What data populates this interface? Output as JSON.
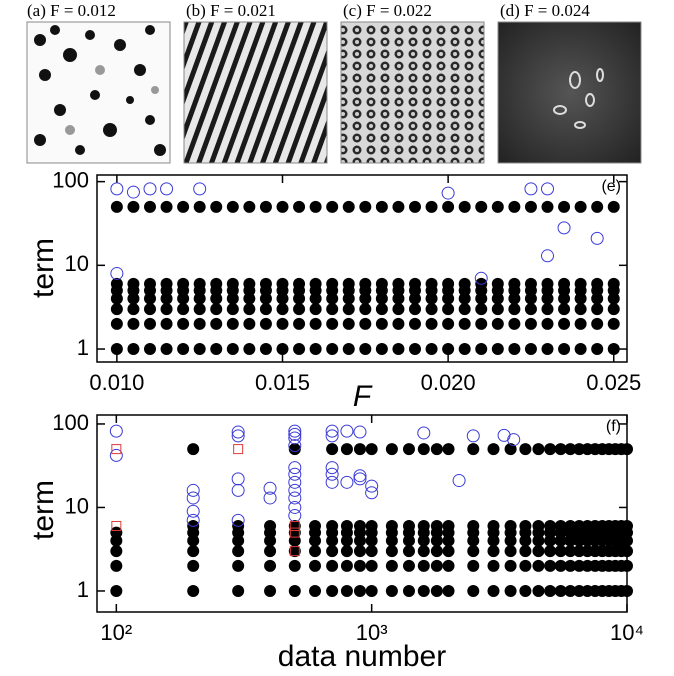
{
  "panels": [
    {
      "label": "(a) F = 0.012"
    },
    {
      "label": "(b) F = 0.021"
    },
    {
      "label": "(c) F = 0.022"
    },
    {
      "label": "(d) F = 0.024"
    }
  ],
  "chart_data": [
    {
      "type": "scatter",
      "panel_label": "(e)",
      "x_label": "F",
      "y_label": "term",
      "log_y": true,
      "xlim": [
        0.0094,
        0.0254
      ],
      "ylim": [
        0.7,
        120
      ],
      "xticks": [
        {
          "value": 0.01,
          "label": "0.010"
        },
        0.015,
        {
          "value": 0.02,
          "label": "0.020"
        },
        0.025
      ],
      "yticks": [
        1,
        10,
        100
      ],
      "x": [
        0.01,
        0.0105,
        0.011,
        0.0115,
        0.012,
        0.0125,
        0.013,
        0.0135,
        0.014,
        0.0145,
        0.015,
        0.0155,
        0.016,
        0.0165,
        0.017,
        0.0175,
        0.018,
        0.0185,
        0.019,
        0.0195,
        0.02,
        0.0205,
        0.021,
        0.0215,
        0.022,
        0.0225,
        0.023,
        0.0235,
        0.024,
        0.0245,
        0.025
      ],
      "series": [
        {
          "color": "#000000",
          "marker": "filled-circle",
          "values": [
            1,
            1,
            1,
            1,
            1,
            1,
            1,
            1,
            1,
            1,
            1,
            1,
            1,
            1,
            1,
            1,
            1,
            1,
            1,
            1,
            1,
            1,
            1,
            1,
            1,
            1,
            1,
            1,
            1,
            1,
            1
          ]
        },
        {
          "color": "#000000",
          "marker": "filled-circle",
          "values": [
            2,
            2,
            2,
            2,
            2,
            2,
            2,
            2,
            2,
            2,
            2,
            2,
            2,
            2,
            2,
            2,
            2,
            2,
            2,
            2,
            2,
            2,
            2,
            2,
            2,
            2,
            2,
            2,
            2,
            2,
            2
          ]
        },
        {
          "color": "#000000",
          "marker": "filled-circle",
          "values": [
            3,
            3,
            3,
            3,
            3,
            3,
            3,
            3,
            3,
            3,
            3,
            3,
            3,
            3,
            3,
            3,
            3,
            3,
            3,
            3,
            3,
            3,
            3,
            3,
            3,
            3,
            3,
            3,
            3,
            3,
            3
          ]
        },
        {
          "color": "#000000",
          "marker": "filled-circle",
          "values": [
            4,
            4,
            4,
            4,
            4,
            4,
            4,
            4,
            4,
            4,
            4,
            4,
            4,
            4,
            4,
            4,
            4,
            4,
            4,
            4,
            4,
            4,
            4,
            4,
            4,
            4,
            4,
            4,
            4,
            4,
            4
          ]
        },
        {
          "color": "#000000",
          "marker": "filled-circle",
          "values": [
            5,
            5,
            5,
            5,
            5,
            5,
            5,
            5,
            5,
            5,
            5,
            5,
            5,
            5,
            5,
            5,
            5,
            5,
            5,
            5,
            5,
            5,
            5,
            5,
            5,
            5,
            5,
            5,
            5,
            5,
            5
          ]
        },
        {
          "color": "#000000",
          "marker": "filled-circle",
          "values": [
            6,
            6,
            6,
            6,
            6,
            6,
            6,
            6,
            6,
            6,
            6,
            6,
            6,
            6,
            6,
            6,
            6,
            6,
            6,
            6,
            6,
            6,
            6,
            6,
            6,
            6,
            6,
            6,
            6,
            6,
            6
          ]
        },
        {
          "color": "#000000",
          "marker": "filled-circle",
          "values": [
            50,
            50,
            50,
            50,
            50,
            50,
            50,
            50,
            50,
            50,
            50,
            50,
            50,
            50,
            50,
            50,
            50,
            50,
            50,
            50,
            50,
            50,
            50,
            50,
            50,
            50,
            50,
            50,
            50,
            50,
            50
          ]
        },
        {
          "color": "#3a3ad6",
          "marker": "open-circle",
          "x": [
            0.01,
            0.01,
            0.0105,
            0.011,
            0.0115,
            0.0125,
            0.02,
            0.021,
            0.0225,
            0.023,
            0.023,
            0.0235,
            0.0245
          ],
          "values": [
            82,
            8,
            75,
            82,
            82,
            82,
            73,
            7,
            82,
            82,
            13,
            28,
            21
          ]
        }
      ]
    },
    {
      "type": "scatter",
      "panel_label": "(f)",
      "x_label": "data number",
      "y_label": "term",
      "log_x": true,
      "log_y": true,
      "xlim": [
        84,
        10000
      ],
      "ylim": [
        0.56,
        128
      ],
      "xticks": [
        {
          "value": 100,
          "label": "10²"
        },
        {
          "value": 1000,
          "label": "10³"
        },
        {
          "value": 10000,
          "label": "10⁴"
        }
      ],
      "yticks": [
        1,
        10,
        100
      ],
      "x": [
        100,
        200,
        300,
        400,
        500,
        600,
        700,
        800,
        900,
        1000,
        1200,
        1400,
        1600,
        1800,
        2000,
        2500,
        3000,
        3500,
        4000,
        4500,
        5000,
        5500,
        6000,
        6500,
        7000,
        7500,
        8000,
        8500,
        9000,
        9500,
        10000
      ],
      "series": [
        {
          "color": "#000000",
          "marker": "filled-circle",
          "values": [
            1,
            1,
            1,
            1,
            1,
            1,
            1,
            1,
            1,
            1,
            1,
            1,
            1,
            1,
            1,
            1,
            1,
            1,
            1,
            1,
            1,
            1,
            1,
            1,
            1,
            1,
            1,
            1,
            1,
            1,
            1
          ]
        },
        {
          "color": "#000000",
          "marker": "filled-circle",
          "values": [
            2,
            2,
            2,
            2,
            2,
            2,
            2,
            2,
            2,
            2,
            2,
            2,
            2,
            2,
            2,
            2,
            2,
            2,
            2,
            2,
            2,
            2,
            2,
            2,
            2,
            2,
            2,
            2,
            2,
            2,
            2
          ]
        },
        {
          "color": "#000000",
          "marker": "filled-circle",
          "values": [
            3,
            3,
            3,
            3,
            3,
            3,
            3,
            3,
            3,
            3,
            3,
            3,
            3,
            3,
            3,
            3,
            3,
            3,
            3,
            3,
            3,
            3,
            3,
            3,
            3,
            3,
            3,
            3,
            3,
            3,
            3
          ]
        },
        {
          "color": "#000000",
          "marker": "filled-circle",
          "values": [
            4,
            4,
            4,
            4,
            4,
            4,
            4,
            4,
            4,
            4,
            4,
            4,
            4,
            4,
            4,
            4,
            4,
            4,
            4,
            4,
            4,
            4,
            4,
            4,
            4,
            4,
            4,
            4,
            4,
            4,
            4
          ]
        },
        {
          "color": "#000000",
          "marker": "filled-circle",
          "values": [
            5,
            5,
            5,
            5,
            5,
            5,
            5,
            5,
            5,
            5,
            5,
            5,
            5,
            5,
            5,
            5,
            5,
            5,
            5,
            5,
            5,
            5,
            5,
            5,
            5,
            5,
            5,
            5,
            5,
            5,
            5
          ]
        },
        {
          "color": "#000000",
          "marker": "filled-circle",
          "values": [
            null,
            6,
            6,
            6,
            6,
            6,
            6,
            6,
            6,
            6,
            6,
            6,
            6,
            6,
            6,
            6,
            6,
            6,
            6,
            6,
            6,
            6,
            6,
            6,
            6,
            6,
            6,
            6,
            6,
            6,
            6
          ]
        },
        {
          "color": "#000000",
          "marker": "filled-circle",
          "values": [
            null,
            50,
            null,
            null,
            50,
            null,
            50,
            50,
            50,
            50,
            50,
            50,
            50,
            50,
            50,
            50,
            50,
            50,
            50,
            50,
            50,
            50,
            50,
            50,
            50,
            50,
            50,
            50,
            50,
            50,
            50
          ]
        },
        {
          "color": "#3a3ad6",
          "marker": "open-circle",
          "x": [
            100,
            100,
            200,
            200,
            200,
            200,
            300,
            300,
            300,
            300,
            300,
            400,
            400,
            500,
            500,
            500,
            500,
            500,
            500,
            500,
            500,
            500,
            500,
            500,
            700,
            700,
            700,
            700,
            700,
            800,
            800,
            900,
            900,
            900,
            1000,
            1000,
            1600,
            2200,
            2500,
            3300,
            3600
          ],
          "values": [
            82,
            42,
            16,
            13,
            9,
            7,
            80,
            72,
            22,
            16,
            7,
            17,
            13,
            82,
            75,
            68,
            55,
            30,
            25,
            20,
            16,
            13,
            10,
            8,
            82,
            72,
            30,
            25,
            20,
            82,
            20,
            80,
            24,
            22,
            18,
            15,
            78,
            21,
            72,
            73,
            65
          ]
        },
        {
          "color": "#e03a3a",
          "marker": "open-square",
          "x": [
            100,
            100,
            300,
            500,
            500,
            500
          ],
          "values": [
            50,
            6,
            50,
            6,
            5,
            3
          ]
        }
      ]
    }
  ]
}
